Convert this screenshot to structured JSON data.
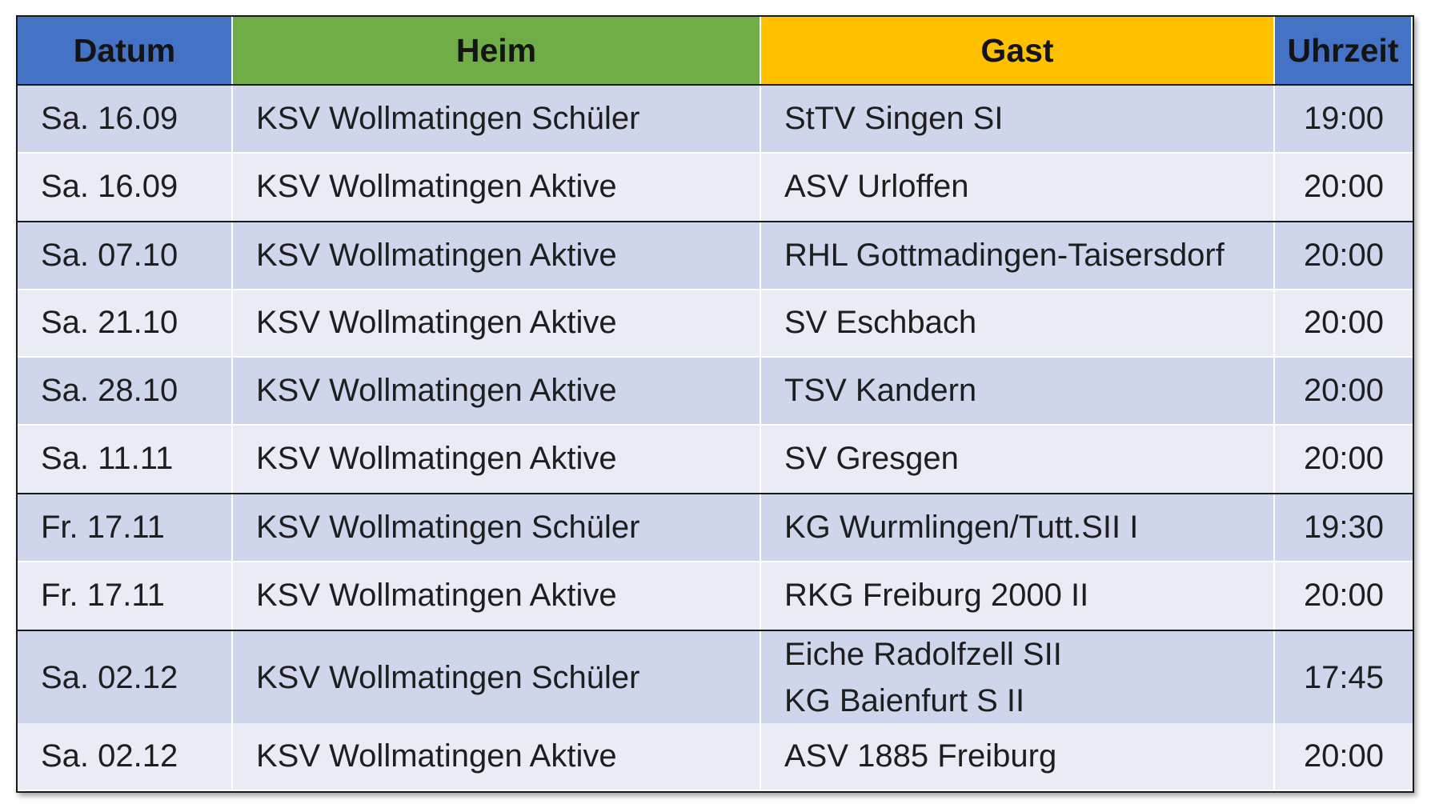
{
  "header": {
    "datum": "Datum",
    "heim": "Heim",
    "gast": "Gast",
    "uhrzeit": "Uhrzeit"
  },
  "rows": [
    {
      "datum": "Sa. 16.09",
      "heim": "KSV Wollmatingen Schüler",
      "gast": "StTV Singen SI",
      "uhrzeit": "19:00"
    },
    {
      "datum": "Sa. 16.09",
      "heim": "KSV Wollmatingen Aktive",
      "gast": "ASV Urloffen",
      "uhrzeit": "20:00"
    },
    {
      "datum": "Sa. 07.10",
      "heim": "KSV Wollmatingen Aktive",
      "gast": "RHL Gottmadingen-Taisersdorf",
      "uhrzeit": "20:00"
    },
    {
      "datum": "Sa. 21.10",
      "heim": "KSV Wollmatingen Aktive",
      "gast": "SV Eschbach",
      "uhrzeit": "20:00"
    },
    {
      "datum": "Sa. 28.10",
      "heim": "KSV Wollmatingen Aktive",
      "gast": "TSV Kandern",
      "uhrzeit": "20:00"
    },
    {
      "datum": "Sa. 11.11",
      "heim": "KSV Wollmatingen Aktive",
      "gast": "SV Gresgen",
      "uhrzeit": "20:00"
    },
    {
      "datum": "Fr. 17.11",
      "heim": "KSV Wollmatingen Schüler",
      "gast": "KG Wurmlingen/Tutt.SII I",
      "uhrzeit": "19:30"
    },
    {
      "datum": "Fr. 17.11",
      "heim": "KSV Wollmatingen Aktive",
      "gast": "RKG Freiburg 2000 II",
      "uhrzeit": "20:00"
    },
    {
      "datum": "Sa. 02.12",
      "heim": "KSV Wollmatingen Schüler",
      "gast": "Eiche Radolfzell SII",
      "gast2": "KG Baienfurt S II",
      "uhrzeit": "17:45"
    },
    {
      "datum": "Sa. 02.12",
      "heim": "KSV Wollmatingen Aktive",
      "gast": "ASV 1885 Freiburg",
      "uhrzeit": "20:00"
    }
  ],
  "colors": {
    "datum_header": "#4472c4",
    "heim_header": "#70ad47",
    "gast_header": "#ffc000",
    "uhrzeit_header": "#4472c4",
    "row_band_dark": "#cfd5ea",
    "row_band_light": "#e9ebf5"
  }
}
